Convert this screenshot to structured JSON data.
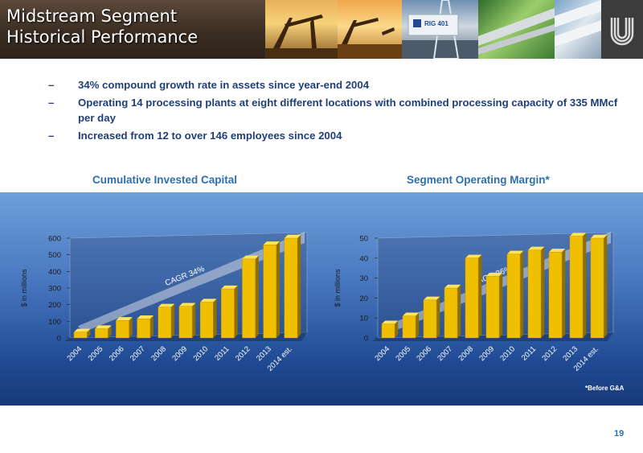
{
  "header": {
    "title_line1": "Midstream Segment",
    "title_line2": "Historical Performance",
    "rig_sign": "RIG 401"
  },
  "bullets": [
    {
      "dash": "–",
      "text": "34% compound growth rate in assets since year-end 2004"
    },
    {
      "dash": "–",
      "text": "Operating 14 processing plants at eight different locations with combined processing capacity of 335 MMcf per day"
    },
    {
      "dash": "–",
      "text": "Increased from 12 to over 146 employees since 2004"
    }
  ],
  "colors": {
    "bar": "#f0c000",
    "bar_side": "#8f6f00",
    "bar_top": "#ffe45a",
    "text_blue": "#1f3f7a",
    "accent_blue": "#2e6fae",
    "panel_top": "#6f9fd9",
    "panel_bottom": "#18397a"
  },
  "chart_data": [
    {
      "type": "bar",
      "title": "Cumulative Invested Capital",
      "ylabel": "$ in millions",
      "ylim": [
        0,
        600
      ],
      "yticks": [
        0,
        100,
        200,
        300,
        400,
        500,
        600
      ],
      "categories": [
        "2004",
        "2005",
        "2006",
        "2007",
        "2008",
        "2009",
        "2010",
        "2011",
        "2012",
        "2013",
        "2014 est."
      ],
      "values": [
        35,
        55,
        105,
        115,
        185,
        190,
        215,
        295,
        475,
        560,
        600
      ],
      "trend_label": "CAGR 34%",
      "grid": false
    },
    {
      "type": "bar",
      "title": "Segment Operating Margin*",
      "ylabel": "$ in millions",
      "ylim": [
        0,
        50
      ],
      "yticks": [
        0,
        10,
        20,
        30,
        40,
        50
      ],
      "categories": [
        "2004",
        "2005",
        "2006",
        "2007",
        "2008",
        "2009",
        "2010",
        "2011",
        "2012",
        "2013",
        "2014 est."
      ],
      "values": [
        7,
        11,
        19,
        25,
        40,
        31,
        42,
        44,
        43,
        51,
        50
      ],
      "trend_label": "CAGR 26%",
      "grid": false
    }
  ],
  "footnote": "*Before G&A",
  "page_number": "19"
}
